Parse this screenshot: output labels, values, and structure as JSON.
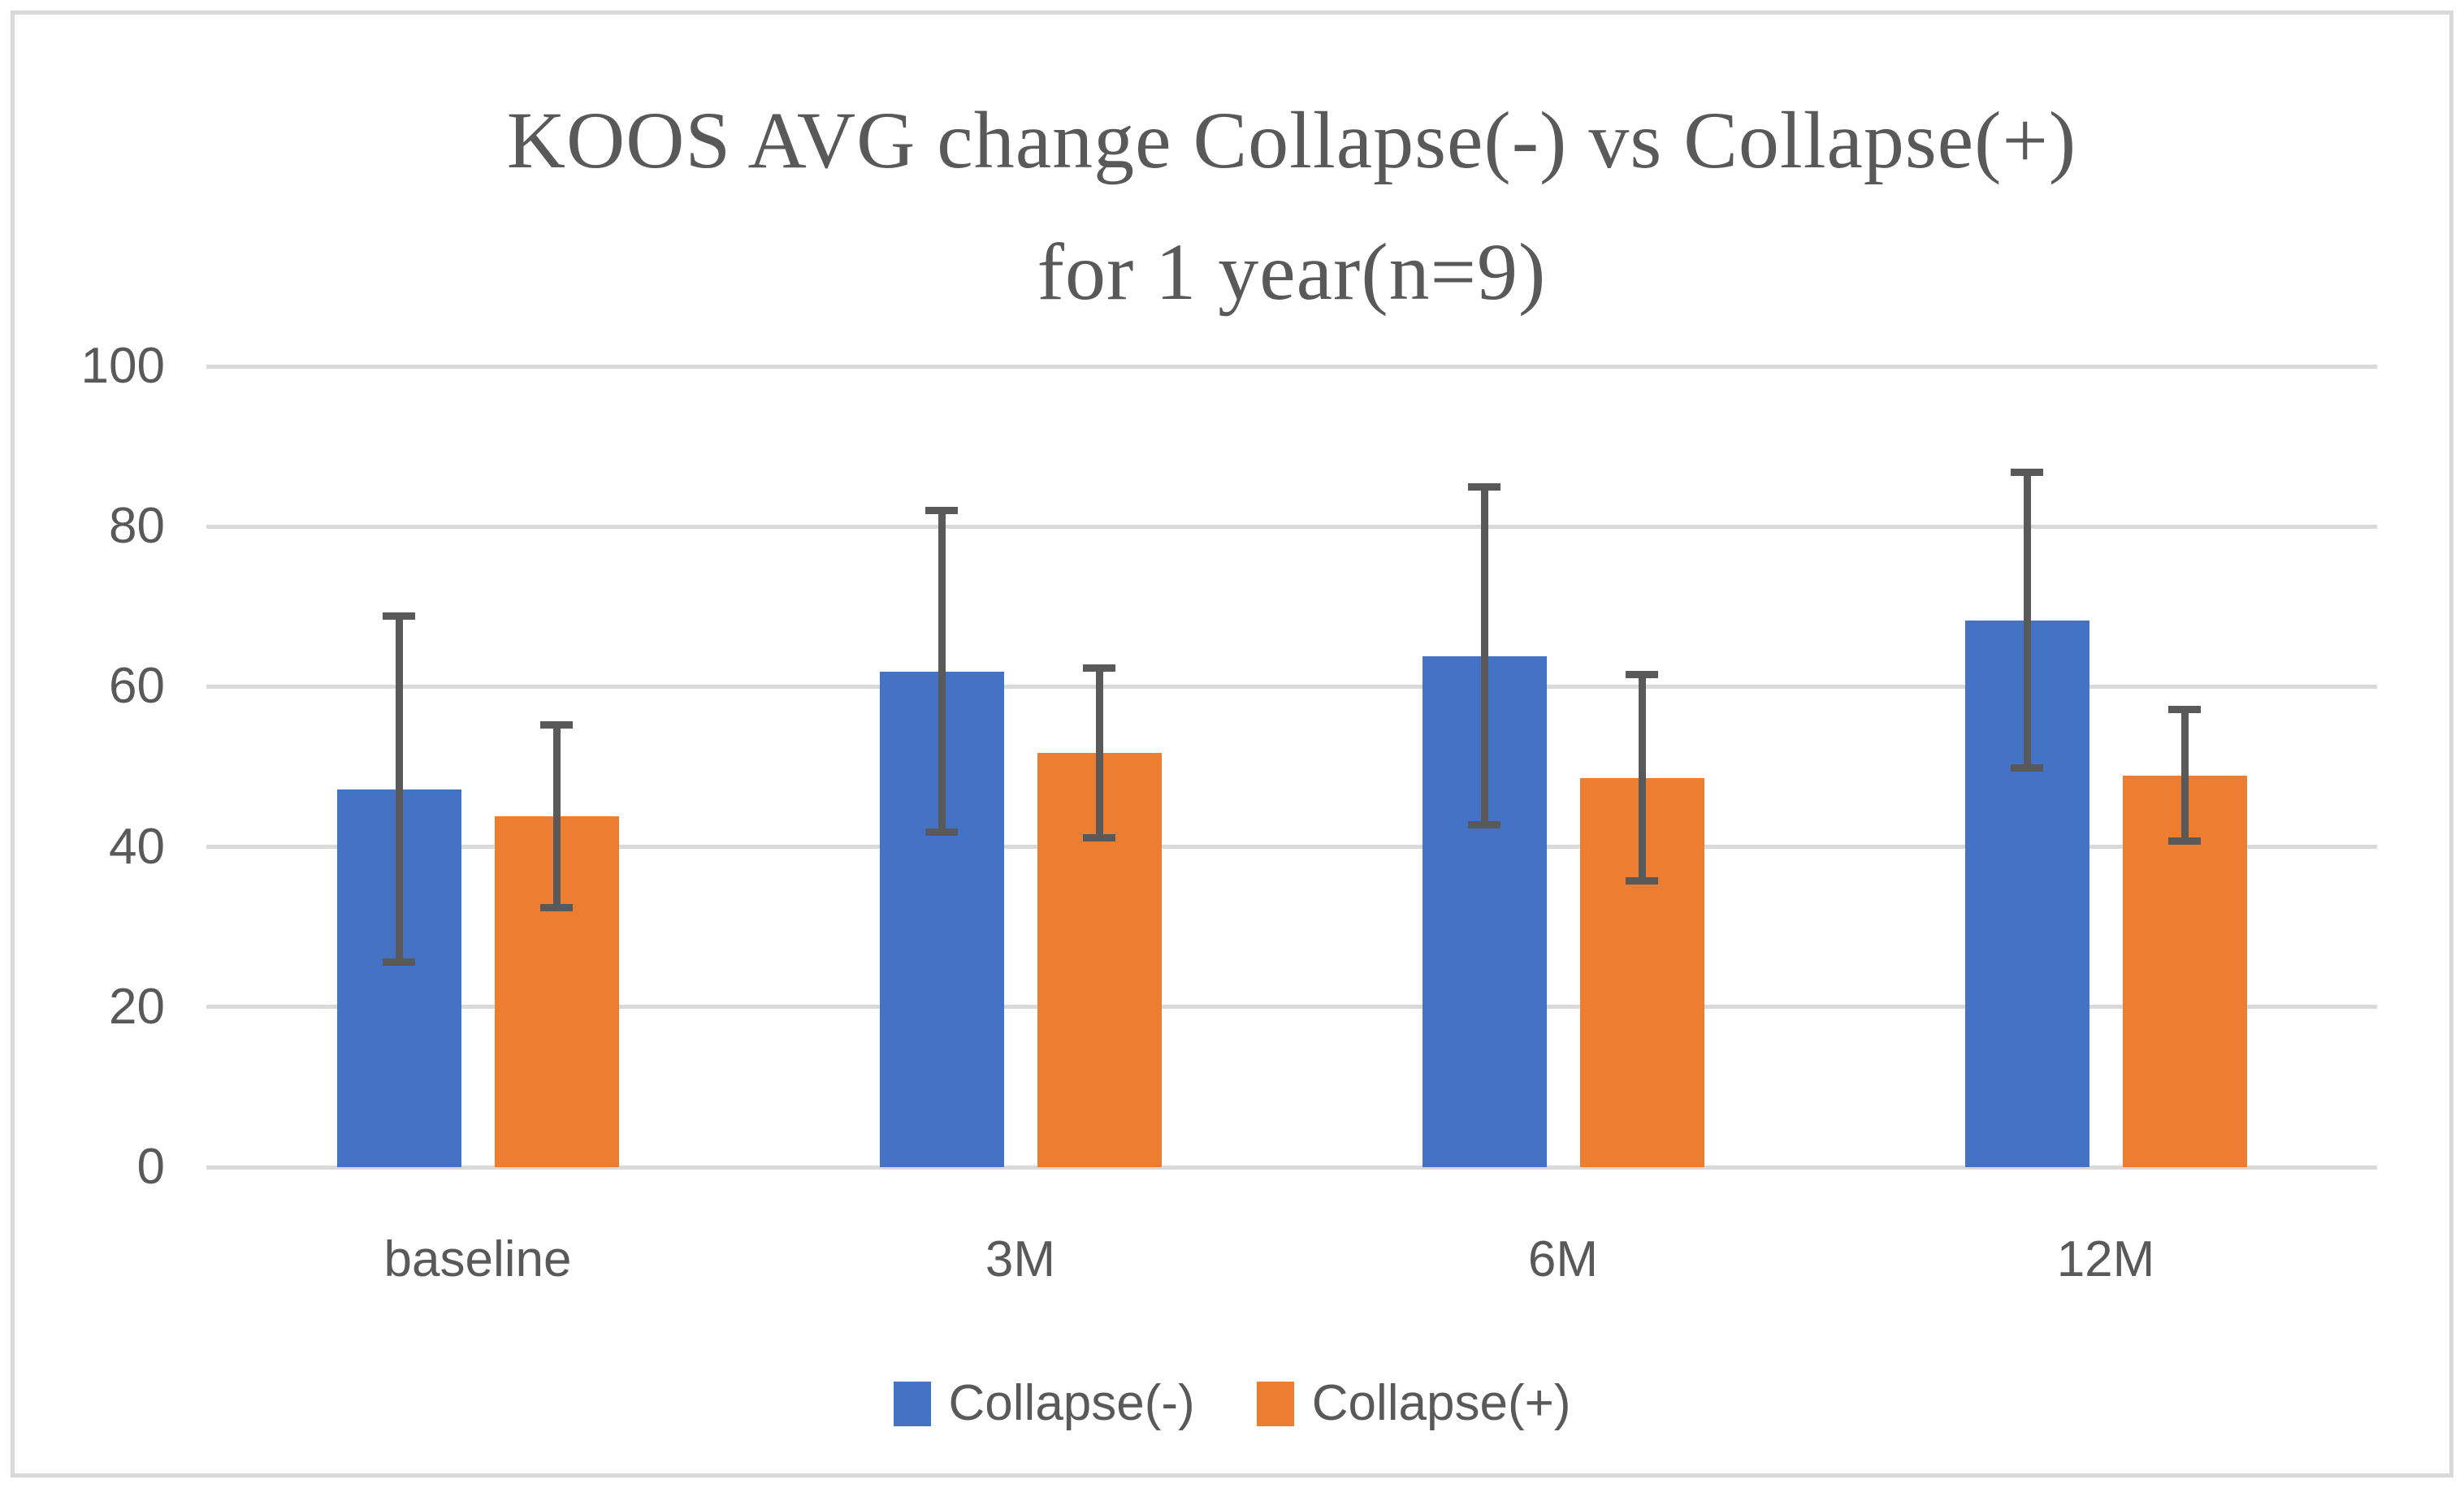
{
  "chart_data": {
    "type": "bar",
    "title": "KOOS AVG change Collapse(-) vs Collapse(+) for 1 year(n=9)",
    "title_lines": [
      "KOOS AVG change Collapse(-) vs Collapse(+)",
      "for 1 year(n=9)"
    ],
    "categories": [
      "baseline",
      "3M",
      "6M",
      "12M"
    ],
    "series": [
      {
        "name": "Collapse(-)",
        "color": "#4472C4",
        "values": [
          47.2,
          61.9,
          63.8,
          68.3
        ],
        "error": [
          21.6,
          20.1,
          21.1,
          18.5
        ]
      },
      {
        "name": "Collapse(+)",
        "color": "#ED7D31",
        "values": [
          43.8,
          51.7,
          48.6,
          48.9
        ],
        "error": [
          11.4,
          10.6,
          12.9,
          8.2
        ]
      }
    ],
    "ylim": [
      0,
      100
    ],
    "yticks": [
      "0",
      "20",
      "40",
      "60",
      "80",
      "100"
    ],
    "xlabel": "",
    "ylabel": "",
    "grid": true,
    "legend_position": "bottom",
    "error_bars": true,
    "colors": {
      "gridline": "#D9D9D9",
      "frame_border": "#D9D9D9",
      "error_bar": "#595959",
      "text": "#595959",
      "background": "#FFFFFF"
    }
  }
}
